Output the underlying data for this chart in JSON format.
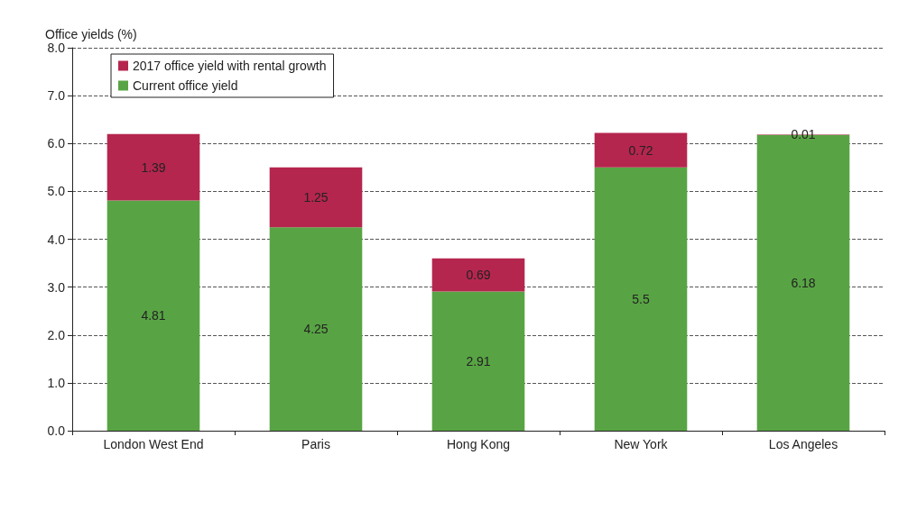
{
  "chart_data": {
    "type": "bar",
    "stacked": true,
    "ylabel": "Office yields (%)",
    "categories": [
      "London West End",
      "Paris",
      "Hong Kong",
      "New York",
      "Los Angeles"
    ],
    "series": [
      {
        "name": "Current office yield",
        "color": "#58a444",
        "values": [
          4.81,
          4.25,
          2.91,
          5.5,
          6.18
        ]
      },
      {
        "name": "2017 office yield with rental growth",
        "color": "#b5264e",
        "values": [
          1.39,
          1.25,
          0.69,
          0.72,
          0.01
        ]
      }
    ],
    "ylim": [
      0,
      8
    ],
    "yticks": [
      {
        "value": 0,
        "label": "0.0"
      },
      {
        "value": 1,
        "label": "1.0"
      },
      {
        "value": 2,
        "label": "2.0"
      },
      {
        "value": 3,
        "label": "3.0"
      },
      {
        "value": 4,
        "label": "4.0"
      },
      {
        "value": 5,
        "label": "5.0"
      },
      {
        "value": 6,
        "label": "6.0"
      },
      {
        "value": 7,
        "label": "7.0"
      },
      {
        "value": 8,
        "label": "8.0"
      }
    ],
    "grid": "y",
    "legend": "top left",
    "data_labels": true
  }
}
